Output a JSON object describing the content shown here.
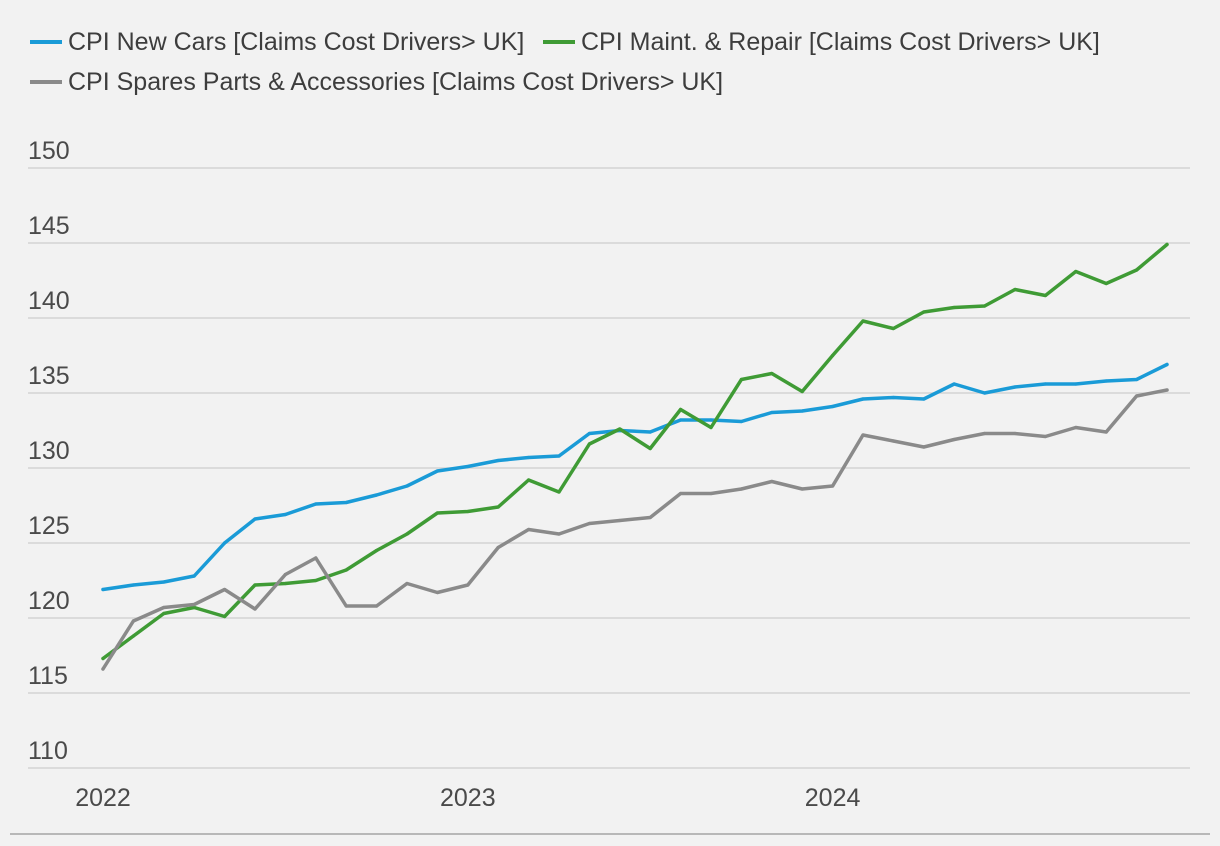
{
  "chart_data": {
    "type": "line",
    "title": "",
    "xlabel": "",
    "ylabel": "",
    "ylim": [
      110,
      150
    ],
    "yticks": [
      110,
      115,
      120,
      125,
      130,
      135,
      140,
      145,
      150
    ],
    "xticks": [
      "2022",
      "2023",
      "2024"
    ],
    "grid": true,
    "legend_position": "top-left",
    "x_start": "2022-01",
    "x_frequency": "monthly",
    "series": [
      {
        "name": "CPI New Cars [Claims Cost Drivers> UK]",
        "color": "#1a9bd7",
        "values": [
          121.9,
          122.2,
          122.4,
          122.8,
          125.0,
          126.6,
          126.9,
          127.6,
          127.7,
          128.2,
          128.8,
          129.8,
          130.1,
          130.5,
          130.7,
          130.8,
          132.3,
          132.5,
          132.4,
          133.2,
          133.2,
          133.1,
          133.7,
          133.8,
          134.1,
          134.6,
          134.7,
          134.6,
          135.6,
          135.0,
          135.4,
          135.6,
          135.6,
          135.8,
          135.9,
          136.9
        ]
      },
      {
        "name": "CPI Maint. & Repair [Claims Cost Drivers> UK]",
        "color": "#3f9b35",
        "values": [
          117.3,
          118.8,
          120.3,
          120.7,
          120.1,
          122.2,
          122.3,
          122.5,
          123.2,
          124.5,
          125.6,
          127.0,
          127.1,
          127.4,
          129.2,
          128.4,
          131.6,
          132.6,
          131.3,
          133.9,
          132.7,
          135.9,
          136.3,
          135.1,
          137.5,
          139.8,
          139.3,
          140.4,
          140.7,
          140.8,
          141.9,
          141.5,
          143.1,
          142.3,
          143.2,
          144.9
        ]
      },
      {
        "name": "CPI Spares Parts & Accessories [Claims Cost Drivers> UK]",
        "color": "#8a8a8a",
        "values": [
          116.6,
          119.8,
          120.7,
          120.9,
          121.9,
          120.6,
          122.9,
          124.0,
          120.8,
          120.8,
          122.3,
          121.7,
          122.2,
          124.7,
          125.9,
          125.6,
          126.3,
          126.5,
          126.7,
          128.3,
          128.3,
          128.6,
          129.1,
          128.6,
          128.8,
          132.2,
          131.8,
          131.4,
          131.9,
          132.3,
          132.3,
          132.1,
          132.7,
          132.4,
          134.8,
          135.2
        ]
      }
    ]
  },
  "footer_rule_color": "#b8b8b8"
}
